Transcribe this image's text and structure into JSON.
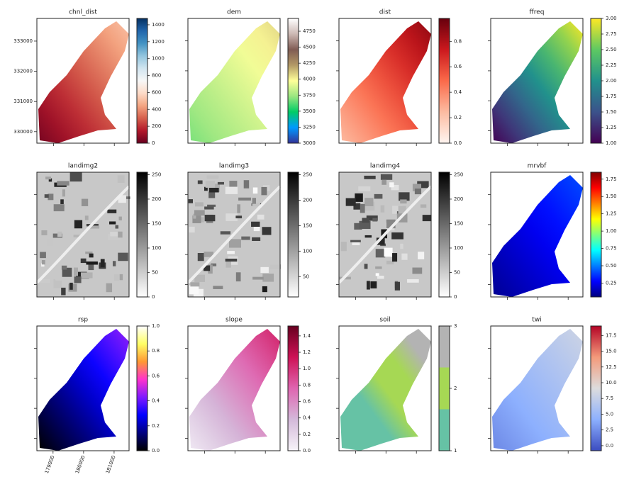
{
  "chart_data": [
    {
      "type": "image",
      "title": "chnl_dist",
      "ylim": [
        329620,
        333750
      ],
      "yticks": [
        330000,
        331000,
        332000,
        333000
      ],
      "clim": [
        0,
        1475
      ],
      "cticks": [
        0,
        200,
        400,
        600,
        800,
        1000,
        1200,
        1400
      ],
      "colors": [
        "#67001f",
        "#b2182b",
        "#d6604d",
        "#f4a582",
        "#fddbc7",
        "#f7f7f7",
        "#d1e5f0",
        "#92c5de",
        "#4393c3",
        "#2166ac",
        "#053061"
      ]
    },
    {
      "type": "image",
      "title": "dem",
      "clim": [
        3000,
        4950
      ],
      "cticks": [
        3000,
        3250,
        3500,
        3750,
        4000,
        4250,
        4500,
        4750
      ],
      "colors": [
        "#333399",
        "#0099ff",
        "#00cc66",
        "#99e680",
        "#ffff99",
        "#b39966",
        "#805c54",
        "#ccb8b3",
        "#ffffff"
      ]
    },
    {
      "type": "image",
      "title": "dist",
      "clim": [
        0,
        0.98
      ],
      "cticks": [
        {
          "value": 0,
          "label": "0.0"
        },
        0.2,
        0.4,
        0.6,
        0.8
      ],
      "colors": [
        "#fff5f0",
        "#fcbba1",
        "#fb6a4a",
        "#cb181d",
        "#67000d"
      ]
    },
    {
      "type": "image",
      "title": "ffreq",
      "clim": [
        1,
        3
      ],
      "cticks": [
        {
          "value": 1,
          "label": "1.00"
        },
        1.25,
        {
          "value": 1.5,
          "label": "1.50"
        },
        1.75,
        {
          "value": 2,
          "label": "2.00"
        },
        2.25,
        {
          "value": 2.5,
          "label": "2.50"
        },
        2.75,
        {
          "value": 3,
          "label": "3.00"
        }
      ],
      "colors": [
        "#440154",
        "#3b528b",
        "#21918c",
        "#5ec962",
        "#fde725"
      ]
    },
    {
      "type": "image",
      "title": "landimg2",
      "clim": [
        0,
        255
      ],
      "cticks": [
        0,
        50,
        100,
        150,
        200,
        250
      ],
      "colors": [
        "#ffffff",
        "#000000"
      ]
    },
    {
      "type": "image",
      "title": "landimg3",
      "clim": [
        10,
        255
      ],
      "cticks": [
        50,
        100,
        150,
        200,
        250
      ],
      "colors": [
        "#ffffff",
        "#000000"
      ]
    },
    {
      "type": "image",
      "title": "landimg4",
      "clim": [
        0,
        255
      ],
      "cticks": [
        0,
        50,
        100,
        150,
        200,
        250
      ],
      "colors": [
        "#ffffff",
        "#000000"
      ]
    },
    {
      "type": "image",
      "title": "mrvbf",
      "clim": [
        0.05,
        1.85
      ],
      "cticks": [
        0.25,
        {
          "value": 0.5,
          "label": "0.50"
        },
        0.75,
        {
          "value": 1,
          "label": "1.00"
        },
        1.25,
        {
          "value": 1.5,
          "label": "1.50"
        },
        1.75
      ],
      "colors": [
        "#00007f",
        "#0000ff",
        "#007fff",
        "#00ffff",
        "#7fff7f",
        "#ffff00",
        "#ff7f00",
        "#ff0000",
        "#7f0000"
      ]
    },
    {
      "type": "image",
      "title": "rsp",
      "xlim": [
        178470,
        181490
      ],
      "xticks": [
        179000,
        180000,
        181000
      ],
      "clim": [
        0,
        1
      ],
      "cticks": [
        {
          "value": 0,
          "label": "0.0"
        },
        0.2,
        0.4,
        0.6,
        0.8,
        {
          "value": 1,
          "label": "1.0"
        }
      ],
      "colors": [
        "#000000",
        "#00007f",
        "#0000ff",
        "#7f1aff",
        "#ff33cc",
        "#ff9933",
        "#ffff66",
        "#ffffff"
      ]
    },
    {
      "type": "image",
      "title": "slope",
      "clim": [
        0,
        1.52
      ],
      "cticks": [
        {
          "value": 0,
          "label": "0.0"
        },
        0.2,
        0.4,
        0.6,
        0.8,
        {
          "value": 1,
          "label": "1.0"
        },
        1.2,
        1.4
      ],
      "colors": [
        "#f7f4f9",
        "#d4b9da",
        "#df65b0",
        "#ce1256",
        "#67001f"
      ]
    },
    {
      "type": "image",
      "title": "soil",
      "discrete": true,
      "clim": [
        1,
        3
      ],
      "cticks": [
        1,
        2,
        3
      ],
      "colors": [
        "#66c2a5",
        "#a6d854",
        "#b3b3b3"
      ]
    },
    {
      "type": "image",
      "title": "twi",
      "clim": [
        -0.8,
        19
      ],
      "cticks": [
        {
          "value": 0,
          "label": "0.0"
        },
        2.5,
        {
          "value": 5,
          "label": "5.0"
        },
        7.5,
        {
          "value": 10,
          "label": "10.0"
        },
        12.5,
        {
          "value": 15,
          "label": "15.0"
        },
        17.5
      ],
      "colors": [
        "#3b4cc0",
        "#8db0fe",
        "#dddddd",
        "#f49a7b",
        "#b40426"
      ]
    }
  ]
}
